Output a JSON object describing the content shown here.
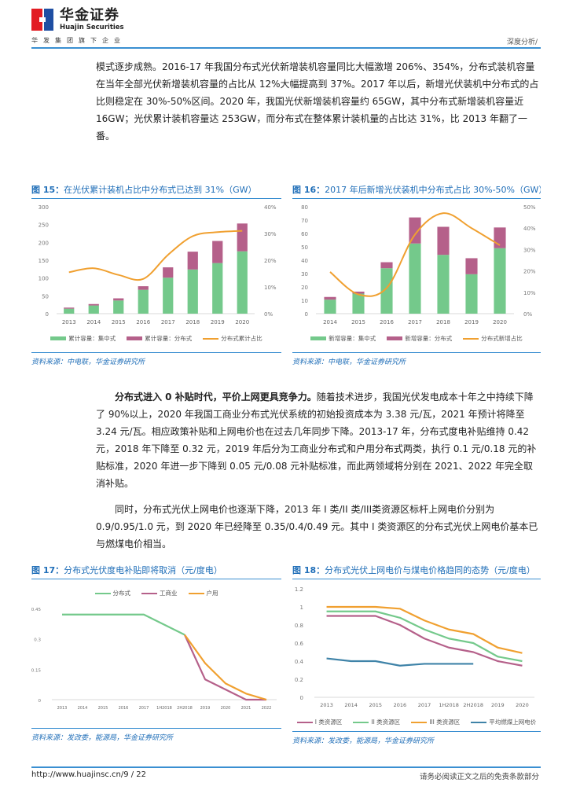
{
  "header": {
    "logo_cn": "华金证券",
    "logo_en": "Huajin Securities",
    "tagline": "华发集团旗下企业",
    "section": "深度分析/",
    "colors": {
      "logo_red": "#e21c23",
      "logo_blue": "#1f4fa3",
      "rule": "#3a8fd1"
    }
  },
  "body": {
    "para1": "模式逐步成熟。2016-17 年我国分布式光伏新增装机容量同比大幅激增 206%、354%，分布式装机容量在当年全部光伏新增装机容量的占比从 12%大幅提高到 37%。2017 年以后，新增光伏装机中分布式的占比则稳定在 30%-50%区间。2020 年，我国光伏新增装机容量约 65GW，其中分布式新增装机容量近 16GW；光伏累计装机容量达 253GW，而分布式在整体累计装机量的占比达 31%，比 2013 年翻了一番。",
    "para2_bold": "分布式进入 0 补贴时代，平价上网更具竞争力。",
    "para2_rest": "随着技术进步，我国光伏发电成本十年之中持续下降了 90%以上，2020 年我国工商业分布式光伏系统的初始投资成本为 3.38 元/瓦，2021 年预计将降至 3.24 元/瓦。相应政策补贴和上网电价也在过去几年同步下降。2013-17 年，分布式度电补贴维持 0.42 元，2018 年下降至 0.32 元，2019 年后分为工商业分布式和户用分布式两类，执行 0.1 元/0.18 元的补贴标准，2020 年进一步下降到 0.05 元/0.08 元补贴标准，而此两领域将分别在 2021、2022 年完全取消补贴。",
    "para3": "同时，分布式光伏上网电价也逐渐下降，2013 年 I 类/II 类/III类资源区标杆上网电价分别为 0.9/0.95/1.0 元，到 2020 年已经降至 0.35/0.4/0.49 元。其中 I 类资源区的分布式光伏上网电价基本已与燃煤电价相当。"
  },
  "figures": {
    "fig15": {
      "label": "图 15：",
      "title": "在光伏累计装机占比中分布式已达到 31%（GW）",
      "source": "资料来源：中电联，华金证券研究所"
    },
    "fig16": {
      "label": "图 16：",
      "title": "2017 年后新增光伏装机中分布式占比 30%-50%（GW）",
      "source": "资料来源：中电联，华金证券研究所"
    },
    "fig17": {
      "label": "图 17：",
      "title": "分布式光伏度电补贴即将取消（元/度电）",
      "source": "资料来源：发改委，能源局，华金证券研究所"
    },
    "fig18": {
      "label": "图 18：",
      "title": "分布式光伏上网电价与煤电价格趋同的态势（元/度电）",
      "source": "资料来源：发改委，能源局，华金证券研究所"
    }
  },
  "chart_data": [
    {
      "id": "fig15",
      "type": "bar",
      "stacked": true,
      "title": "在光伏累计装机占比中分布式已达到 31%（GW）",
      "categories": [
        "2013",
        "2014",
        "2015",
        "2016",
        "2017",
        "2018",
        "2019",
        "2020"
      ],
      "series": [
        {
          "name": "累计容量：集中式",
          "type": "bar",
          "color": "#74c98b",
          "values": [
            14,
            23,
            37,
            67,
            101,
            124,
            142,
            175
          ]
        },
        {
          "name": "累计容量：分布式",
          "type": "bar",
          "color": "#b5608a",
          "values": [
            3,
            4,
            6,
            10,
            29,
            50,
            62,
            78
          ]
        },
        {
          "name": "分布式累计占比",
          "type": "line",
          "axis": "right",
          "color": "#f0a030",
          "values": [
            0.155,
            0.17,
            0.145,
            0.13,
            0.22,
            0.29,
            0.305,
            0.31
          ]
        }
      ],
      "ylim": [
        0,
        300
      ],
      "yticks": [
        "0",
        "50",
        "100",
        "150",
        "200",
        "250",
        "300"
      ],
      "y2lim": [
        0,
        0.4
      ],
      "y2ticks": [
        "0%",
        "10%",
        "20%",
        "30%",
        "40%"
      ],
      "legend_position": "bottom"
    },
    {
      "id": "fig16",
      "type": "bar",
      "stacked": true,
      "title": "2017 年后新增光伏装机中分布式占比 30%-50%（GW）",
      "categories": [
        "2014",
        "2015",
        "2016",
        "2017",
        "2018",
        "2019",
        "2020"
      ],
      "series": [
        {
          "name": "新增容量：集中式",
          "type": "bar",
          "color": "#74c98b",
          "values": [
            10.5,
            15,
            34,
            52.5,
            44,
            29.5,
            49
          ]
        },
        {
          "name": "新增容量：分布式",
          "type": "bar",
          "color": "#b5608a",
          "values": [
            2,
            1.5,
            4.5,
            19.5,
            21,
            12,
            15.5
          ]
        },
        {
          "name": "分布式新增占比",
          "type": "line",
          "axis": "right",
          "color": "#f0a030",
          "values": [
            0.195,
            0.09,
            0.12,
            0.37,
            0.47,
            0.4,
            0.32
          ]
        }
      ],
      "ylim": [
        0,
        80
      ],
      "yticks": [
        "0",
        "10",
        "20",
        "30",
        "40",
        "50",
        "60",
        "70",
        "80"
      ],
      "y2lim": [
        0,
        0.5
      ],
      "y2ticks": [
        "0%",
        "10%",
        "20%",
        "30%",
        "40%",
        "50%"
      ],
      "legend_position": "bottom"
    },
    {
      "id": "fig17",
      "type": "line",
      "title": "分布式光伏度电补贴即将取消（元/度电）",
      "categories": [
        "2013",
        "2014",
        "2015",
        "2016",
        "2017",
        "1H2018",
        "2H2018",
        "2019",
        "2020",
        "2021",
        "2022"
      ],
      "series": [
        {
          "name": "分布式",
          "color": "#74c98b",
          "values": [
            0.42,
            0.42,
            0.42,
            0.42,
            0.42,
            0.37,
            0.32,
            null,
            null,
            null,
            null
          ]
        },
        {
          "name": "工商业",
          "color": "#b5608a",
          "values": [
            null,
            null,
            null,
            null,
            null,
            null,
            0.32,
            0.1,
            0.05,
            0,
            0
          ]
        },
        {
          "name": "户用",
          "color": "#f0a030",
          "values": [
            null,
            null,
            null,
            null,
            null,
            null,
            0.32,
            0.18,
            0.08,
            0.03,
            0
          ]
        }
      ],
      "ylim": [
        0,
        0.45
      ],
      "yticks": [
        "0",
        "0.15",
        "0.3",
        "0.45"
      ],
      "legend_position": "top"
    },
    {
      "id": "fig18",
      "type": "line",
      "title": "分布式光伏上网电价与煤电价格趋同的态势（元/度电）",
      "categories": [
        "2013",
        "2014",
        "2015",
        "2016",
        "2017",
        "1H2018",
        "2H2018",
        "2019",
        "2020"
      ],
      "series": [
        {
          "name": "I 类资源区",
          "color": "#b5608a",
          "values": [
            0.9,
            0.9,
            0.9,
            0.8,
            0.65,
            0.55,
            0.5,
            0.4,
            0.35
          ]
        },
        {
          "name": "II 类资源区",
          "color": "#74c98b",
          "values": [
            0.95,
            0.95,
            0.95,
            0.88,
            0.75,
            0.65,
            0.6,
            0.45,
            0.4
          ]
        },
        {
          "name": "III 类资源区",
          "color": "#f0a030",
          "values": [
            1.0,
            1.0,
            1.0,
            0.98,
            0.85,
            0.75,
            0.7,
            0.55,
            0.49
          ]
        },
        {
          "name": "平均燃煤上网电价",
          "color": "#3f83a8",
          "values": [
            0.43,
            0.4,
            0.4,
            0.35,
            0.37,
            0.37,
            0.37,
            null,
            null
          ]
        }
      ],
      "ylim": [
        0,
        1.2
      ],
      "yticks": [
        "0",
        "0.2",
        "0.4",
        "0.6",
        "0.8",
        "1",
        "1.2"
      ],
      "legend_position": "bottom"
    }
  ],
  "legends": {
    "fig15": [
      "累计容量：集中式",
      "累计容量：分布式",
      "分布式累计占比"
    ],
    "fig16": [
      "新增容量：集中式",
      "新增容量：分布式",
      "分布式新增占比"
    ],
    "fig17": [
      "分布式",
      "工商业",
      "户用"
    ],
    "fig18": [
      "I 类资源区",
      "II 类资源区",
      "III 类资源区",
      "平均燃煤上网电价"
    ]
  },
  "footer": {
    "left": "http://www.huajinsc.cn/9 / 22",
    "right": "请务必阅读正文之后的免责条款部分"
  }
}
